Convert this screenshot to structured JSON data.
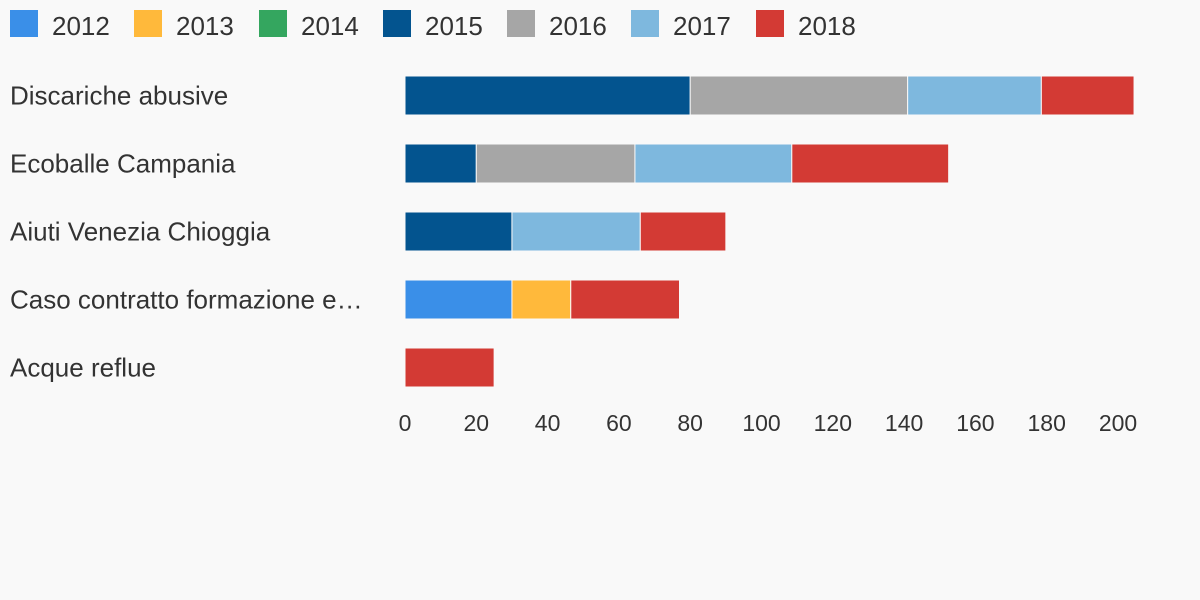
{
  "chart_data": {
    "type": "bar",
    "orientation": "horizontal",
    "stacked": true,
    "categories": [
      "Discariche abusive",
      "Ecoballe Campania",
      "Aiuti Venezia Chioggia",
      "Caso contratto formazione e…",
      "Acque reflue"
    ],
    "series": [
      {
        "name": "2012",
        "color": "#3a8fe8",
        "values": [
          0,
          0,
          0,
          30,
          0
        ]
      },
      {
        "name": "2013",
        "color": "#ffb93b",
        "values": [
          0,
          0,
          0,
          16.5,
          0
        ]
      },
      {
        "name": "2014",
        "color": "#34a65f",
        "values": [
          0,
          0,
          0,
          0,
          0
        ]
      },
      {
        "name": "2015",
        "color": "#03548f",
        "values": [
          80,
          20,
          30,
          0,
          0
        ]
      },
      {
        "name": "2016",
        "color": "#a6a6a6",
        "values": [
          61,
          44.5,
          0,
          0,
          0
        ]
      },
      {
        "name": "2017",
        "color": "#7eb8de",
        "values": [
          37.5,
          44,
          36,
          0,
          0
        ]
      },
      {
        "name": "2018",
        "color": "#d33a34",
        "values": [
          26,
          44,
          24,
          30.5,
          25
        ]
      }
    ],
    "x_ticks": [
      0,
      20,
      40,
      60,
      80,
      100,
      120,
      140,
      160,
      180,
      200
    ],
    "xlim": [
      0,
      200
    ],
    "title": "",
    "xlabel": "",
    "ylabel": "",
    "legend_position": "top-left",
    "grid": false
  }
}
